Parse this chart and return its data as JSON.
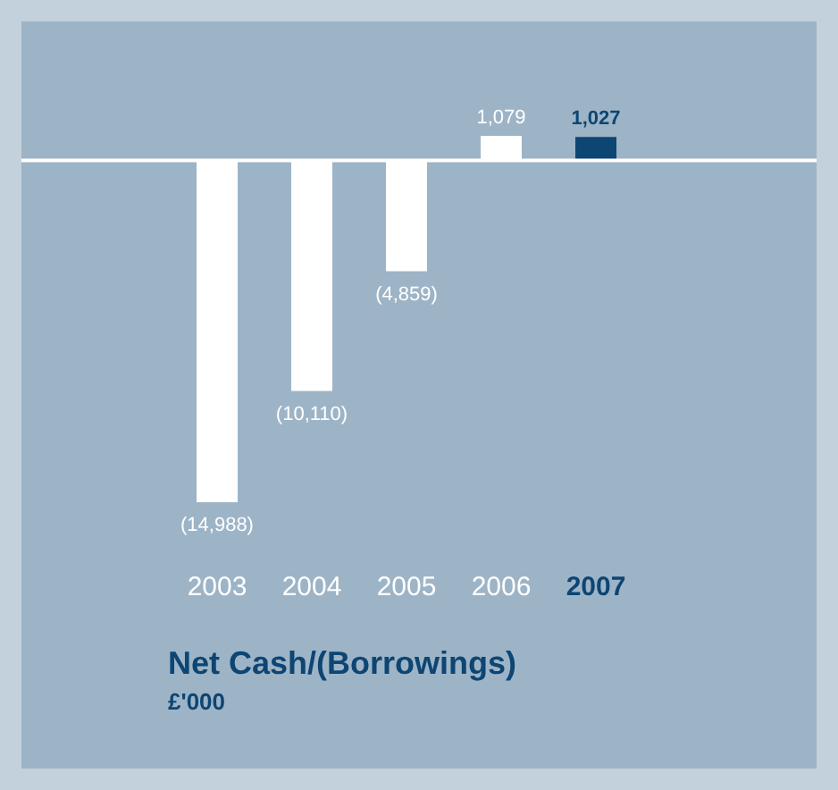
{
  "chart_data": {
    "type": "bar",
    "title": "Net Cash/(Borrowings)",
    "subtitle": "£'000",
    "categories": [
      "2003",
      "2004",
      "2005",
      "2006",
      "2007"
    ],
    "values": [
      -14988,
      -10110,
      -4859,
      1079,
      1027
    ],
    "colors": [
      "#ffffff",
      "#ffffff",
      "#ffffff",
      "#ffffff",
      "#0d4573"
    ],
    "value_labels": [
      "(14,988)",
      "(10,110)",
      "(4,859)",
      "1,079",
      "1,027"
    ]
  }
}
